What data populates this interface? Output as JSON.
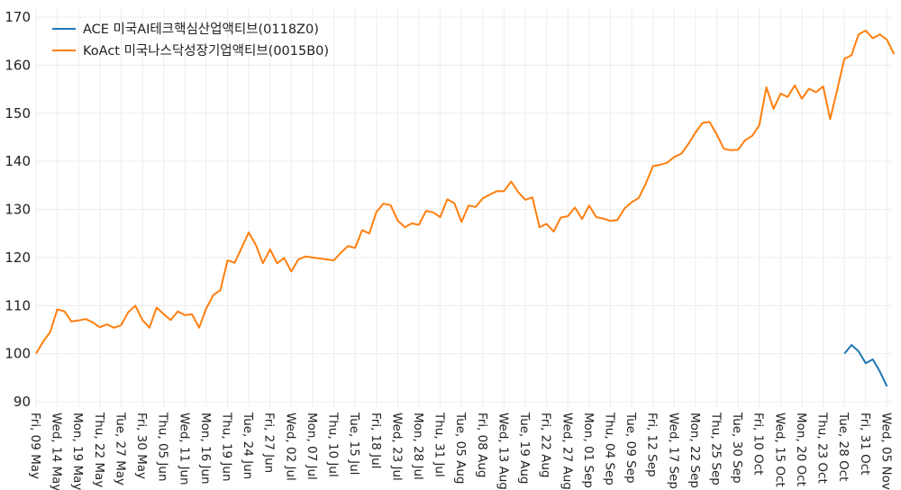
{
  "chart_data": {
    "type": "line",
    "title": "",
    "xlabel": "",
    "ylabel": "",
    "ylim": [
      90,
      170
    ],
    "yticks": [
      90,
      100,
      110,
      120,
      130,
      140,
      150,
      160,
      170
    ],
    "grid": true,
    "legend_position": "top-left",
    "tick_every": 3,
    "x_tick_labels": [
      "Fri, 09 May",
      "Wed, 14 May",
      "Mon, 19 May",
      "Thu, 22 May",
      "Tue, 27 May",
      "Fri, 30 May",
      "Thu, 05 Jun",
      "Wed, 11 Jun",
      "Mon, 16 Jun",
      "Thu, 19 Jun",
      "Tue, 24 Jun",
      "Fri, 27 Jun",
      "Wed, 02 Jul",
      "Mon, 07 Jul",
      "Thu, 10 Jul",
      "Tue, 15 Jul",
      "Fri, 18 Jul",
      "Wed, 23 Jul",
      "Mon, 28 Jul",
      "Thu, 31 Jul",
      "Tue, 05 Aug",
      "Fri, 08 Aug",
      "Wed, 13 Aug",
      "Tue, 19 Aug",
      "Fri, 22 Aug",
      "Wed, 27 Aug",
      "Mon, 01 Sep",
      "Thu, 04 Sep",
      "Tue, 09 Sep",
      "Fri, 12 Sep",
      "Wed, 17 Sep",
      "Mon, 22 Sep",
      "Thu, 25 Sep",
      "Tue, 30 Sep",
      "Fri, 10 Oct",
      "Wed, 15 Oct",
      "Mon, 20 Oct",
      "Thu, 23 Oct",
      "Tue, 28 Oct",
      "Fri, 31 Oct",
      "Wed, 05 Nov"
    ],
    "series": [
      {
        "name": "ACE 미국AI테크핵심산업액티브(0118Z0)",
        "color": "#1f77b4",
        "start_index": 114,
        "values": [
          100.0,
          101.8,
          100.5,
          98.0,
          98.8,
          96.3,
          93.2
        ]
      },
      {
        "name": "KoAct 미국나스닥성장기업액티브(0015B0)",
        "color": "#ff7f0e",
        "start_index": 0,
        "values": [
          100.0,
          102.5,
          104.5,
          109.2,
          108.8,
          106.7,
          106.9,
          107.2,
          106.5,
          105.5,
          106.1,
          105.4,
          105.9,
          108.6,
          110.0,
          107.0,
          105.4,
          109.6,
          108.2,
          107.0,
          108.8,
          108.0,
          108.2,
          105.4,
          109.4,
          112.2,
          113.2,
          119.4,
          118.9,
          122.0,
          125.2,
          122.6,
          118.8,
          121.7,
          118.8,
          119.9,
          117.1,
          119.6,
          120.2,
          120.0,
          119.8,
          119.6,
          119.4,
          121.0,
          122.4,
          122.0,
          125.7,
          125.0,
          129.5,
          131.2,
          130.9,
          127.7,
          126.3,
          127.1,
          126.8,
          129.7,
          129.4,
          128.4,
          132.1,
          131.3,
          127.4,
          130.8,
          130.5,
          132.3,
          133.1,
          133.8,
          133.8,
          135.8,
          133.6,
          132.0,
          132.5,
          126.3,
          127.0,
          125.4,
          128.3,
          128.6,
          130.4,
          128.0,
          130.8,
          128.4,
          128.1,
          127.6,
          127.8,
          130.2,
          131.5,
          132.4,
          135.4,
          139.0,
          139.3,
          139.7,
          140.9,
          141.6,
          143.6,
          146.0,
          148.0,
          148.2,
          145.6,
          142.6,
          142.3,
          142.4,
          144.4,
          145.3,
          147.5,
          155.4,
          150.9,
          154.1,
          153.4,
          155.8,
          153.0,
          155.1,
          154.4,
          155.6,
          148.8,
          155.0,
          161.3,
          162.1,
          166.4,
          167.2,
          165.6,
          166.4,
          165.3,
          162.3
        ]
      }
    ]
  },
  "legend": {
    "items": [
      {
        "label": "ACE 미국AI테크핵심산업액티브(0118Z0)",
        "color": "#1f77b4"
      },
      {
        "label": "KoAct 미국나스닥성장기업액티브(0015B0)",
        "color": "#ff7f0e"
      }
    ]
  }
}
